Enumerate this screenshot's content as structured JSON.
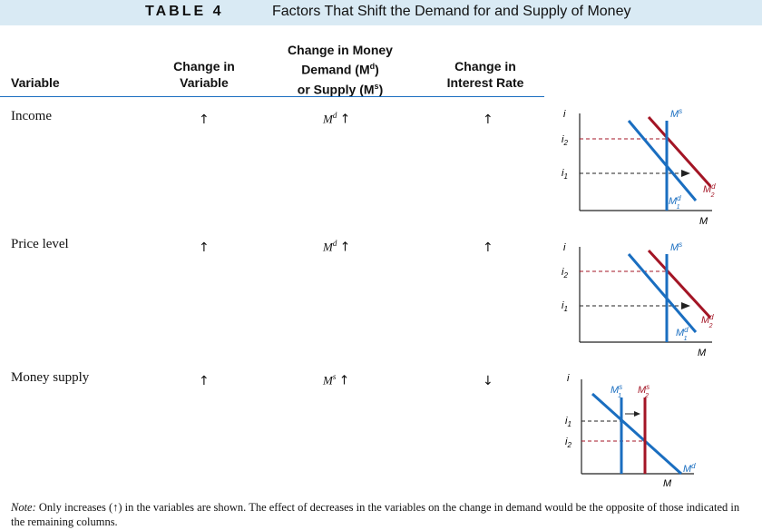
{
  "header": {
    "table_label": "TABLE 4",
    "title": "Factors That Shift the Demand for and Supply of Money"
  },
  "columns": {
    "variable": "Variable",
    "change_in_variable": [
      "Change in",
      "Variable"
    ],
    "change_in_money": [
      "Change in Money",
      "Demand (M",
      "d",
      ")",
      "or Supply (M",
      "s",
      ")"
    ],
    "change_in_interest": [
      "Change in",
      "Interest Rate"
    ]
  },
  "rows": [
    {
      "label": "Income",
      "change": "↑",
      "money_sym": "M",
      "money_sup": "d",
      "money_arrow": "↑",
      "interest": "↑"
    },
    {
      "label": "Price level",
      "change": "↑",
      "money_sym": "M",
      "money_sup": "d",
      "money_arrow": "↑",
      "interest": "↑"
    },
    {
      "label": "Money supply",
      "change": "↑",
      "money_sym": "M",
      "money_sup": "s",
      "money_arrow": "↑",
      "interest": "↓"
    }
  ],
  "graph_labels": {
    "i": "i",
    "i1": "i",
    "i2": "i",
    "sub1": "1",
    "sub2": "2",
    "M": "M",
    "Ms": "M",
    "Md": "M",
    "s": "s",
    "d": "d"
  },
  "note": {
    "lead": "Note:",
    "text": " Only increases (↑) in the variables are shown. The effect of decreases in the variables on the change in demand would be the opposite of those indicated in the remaining columns."
  },
  "colors": {
    "blue": "#1a6ec0",
    "red": "#a31525",
    "header_bg": "#d9eaf4"
  }
}
